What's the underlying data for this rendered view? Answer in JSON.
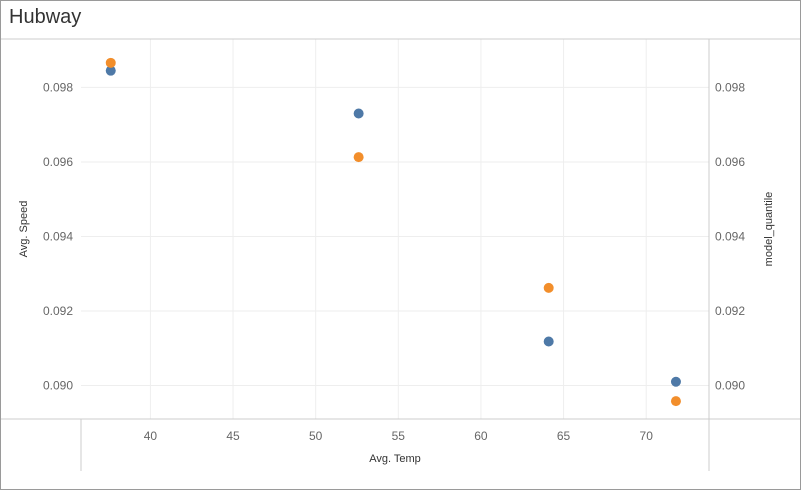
{
  "worksheet": {
    "title": "Hubway"
  },
  "colors": {
    "avg_speed": "#4e79a7",
    "model_quantile": "#f28e2b",
    "grid": "#eeeeee",
    "axis": "#cccccc"
  },
  "chart_data": {
    "type": "scatter",
    "title": "Hubway",
    "xlabel": "Avg. Temp",
    "ylabel": "Avg. Speed",
    "y2label": "model_quantile",
    "xlim": [
      35.8,
      73.8
    ],
    "ylim": [
      0.0891,
      0.0993
    ],
    "x_ticks": [
      "40",
      "45",
      "50",
      "55",
      "60",
      "65",
      "70"
    ],
    "y_ticks": [
      "0.090",
      "0.092",
      "0.094",
      "0.096",
      "0.098"
    ],
    "y2_ticks": [
      "0.090",
      "0.092",
      "0.094",
      "0.096",
      "0.098"
    ],
    "grid": true,
    "legend": "none",
    "series": [
      {
        "key": "avg_speed",
        "x": [
          37.6,
          52.6,
          64.1,
          71.8
        ],
        "y": [
          0.09845,
          0.0973,
          0.09118,
          0.0901
        ]
      },
      {
        "key": "model_quantile",
        "x": [
          37.6,
          52.6,
          64.1,
          71.8
        ],
        "y": [
          0.09866,
          0.09613,
          0.09262,
          0.08958
        ]
      }
    ]
  }
}
